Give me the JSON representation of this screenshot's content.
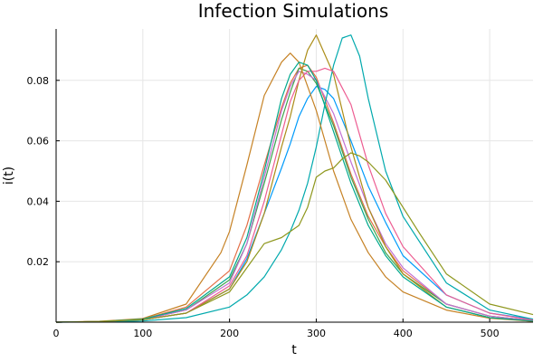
{
  "chart_data": {
    "type": "line",
    "title": "Infection Simulations",
    "xlabel": "t",
    "ylabel": "i(t)",
    "xlim": [
      0,
      550
    ],
    "ylim": [
      0,
      0.097
    ],
    "xticks": [
      0,
      100,
      200,
      300,
      400,
      500
    ],
    "yticks": [
      0.02,
      0.04,
      0.06,
      0.08
    ],
    "ytick_labels": [
      "0.02",
      "0.04",
      "0.06",
      "0.08"
    ],
    "grid": true,
    "legend": "none",
    "series": [
      {
        "color": "#009AFA",
        "x": [
          0,
          50,
          100,
          150,
          200,
          220,
          240,
          260,
          270,
          280,
          290,
          300,
          310,
          320,
          340,
          360,
          380,
          400,
          450,
          500,
          550
        ],
        "y": [
          0,
          0.0002,
          0.0008,
          0.003,
          0.011,
          0.021,
          0.036,
          0.051,
          0.059,
          0.068,
          0.074,
          0.078,
          0.077,
          0.074,
          0.06,
          0.045,
          0.033,
          0.022,
          0.009,
          0.003,
          0.001
        ]
      },
      {
        "color": "#E36F47",
        "x": [
          0,
          50,
          100,
          150,
          200,
          220,
          240,
          260,
          270,
          280,
          290,
          300,
          320,
          340,
          360,
          380,
          400,
          450,
          500,
          550
        ],
        "y": [
          0,
          0.0002,
          0.001,
          0.005,
          0.017,
          0.032,
          0.052,
          0.071,
          0.079,
          0.084,
          0.085,
          0.081,
          0.066,
          0.049,
          0.035,
          0.025,
          0.017,
          0.006,
          0.002,
          0.0005
        ]
      },
      {
        "color": "#3EA44E",
        "x": [
          0,
          50,
          100,
          150,
          200,
          220,
          240,
          260,
          270,
          280,
          290,
          300,
          320,
          340,
          360,
          380,
          400,
          450,
          500,
          550
        ],
        "y": [
          0,
          0.0002,
          0.0009,
          0.004,
          0.014,
          0.026,
          0.046,
          0.067,
          0.076,
          0.084,
          0.083,
          0.079,
          0.065,
          0.048,
          0.034,
          0.023,
          0.016,
          0.006,
          0.002,
          0.0005
        ]
      },
      {
        "color": "#C271D2",
        "x": [
          0,
          50,
          100,
          150,
          200,
          220,
          240,
          260,
          270,
          280,
          290,
          300,
          320,
          340,
          360,
          380,
          400,
          450,
          500,
          550
        ],
        "y": [
          0,
          0.0002,
          0.0008,
          0.004,
          0.013,
          0.026,
          0.048,
          0.07,
          0.078,
          0.083,
          0.082,
          0.08,
          0.069,
          0.053,
          0.038,
          0.026,
          0.018,
          0.006,
          0.002,
          0.0005
        ]
      },
      {
        "color": "#AC8D18",
        "x": [
          0,
          50,
          100,
          150,
          200,
          220,
          240,
          260,
          270,
          280,
          290,
          300,
          320,
          340,
          360,
          380,
          400,
          450,
          500,
          550
        ],
        "y": [
          0,
          0.0002,
          0.0008,
          0.003,
          0.011,
          0.02,
          0.036,
          0.058,
          0.068,
          0.08,
          0.09,
          0.095,
          0.082,
          0.058,
          0.038,
          0.025,
          0.016,
          0.005,
          0.0015,
          0.0003
        ]
      },
      {
        "color": "#00A9AD",
        "x": [
          0,
          50,
          100,
          150,
          200,
          220,
          240,
          260,
          270,
          280,
          290,
          300,
          310,
          320,
          330,
          340,
          350,
          360,
          380,
          400,
          450,
          500,
          550
        ],
        "y": [
          0,
          0.0001,
          0.0004,
          0.0015,
          0.005,
          0.009,
          0.015,
          0.024,
          0.03,
          0.037,
          0.046,
          0.058,
          0.072,
          0.085,
          0.094,
          0.095,
          0.088,
          0.074,
          0.05,
          0.035,
          0.013,
          0.004,
          0.001
        ]
      },
      {
        "color": "#ED5D92",
        "x": [
          0,
          50,
          100,
          150,
          200,
          220,
          240,
          260,
          270,
          280,
          290,
          300,
          310,
          320,
          340,
          360,
          380,
          400,
          450,
          500,
          550
        ],
        "y": [
          0,
          0.0002,
          0.0008,
          0.003,
          0.012,
          0.022,
          0.04,
          0.062,
          0.073,
          0.08,
          0.083,
          0.083,
          0.084,
          0.083,
          0.072,
          0.052,
          0.036,
          0.025,
          0.009,
          0.003,
          0.0007
        ]
      },
      {
        "color": "#C68225",
        "x": [
          0,
          50,
          100,
          150,
          190,
          200,
          220,
          240,
          260,
          270,
          280,
          300,
          320,
          340,
          360,
          380,
          400,
          450,
          500,
          550
        ],
        "y": [
          0,
          0.0003,
          0.0012,
          0.006,
          0.023,
          0.03,
          0.052,
          0.075,
          0.086,
          0.089,
          0.086,
          0.07,
          0.05,
          0.034,
          0.023,
          0.015,
          0.01,
          0.004,
          0.0013,
          0.0003
        ]
      },
      {
        "color": "#00A98D",
        "x": [
          0,
          50,
          100,
          150,
          200,
          220,
          240,
          260,
          270,
          280,
          290,
          300,
          320,
          340,
          360,
          380,
          400,
          450,
          500,
          550
        ],
        "y": [
          0,
          0.0002,
          0.001,
          0.0045,
          0.015,
          0.028,
          0.05,
          0.074,
          0.082,
          0.086,
          0.085,
          0.08,
          0.063,
          0.046,
          0.032,
          0.022,
          0.015,
          0.005,
          0.0015,
          0.0004
        ]
      },
      {
        "color": "#8E971D",
        "x": [
          0,
          50,
          100,
          150,
          200,
          220,
          240,
          260,
          280,
          290,
          300,
          310,
          320,
          330,
          340,
          350,
          360,
          380,
          400,
          420,
          450,
          500,
          550
        ],
        "y": [
          0,
          0.0002,
          0.0008,
          0.003,
          0.01,
          0.018,
          0.026,
          0.028,
          0.032,
          0.038,
          0.048,
          0.05,
          0.051,
          0.054,
          0.056,
          0.055,
          0.053,
          0.047,
          0.038,
          0.029,
          0.016,
          0.006,
          0.0025
        ]
      }
    ]
  }
}
